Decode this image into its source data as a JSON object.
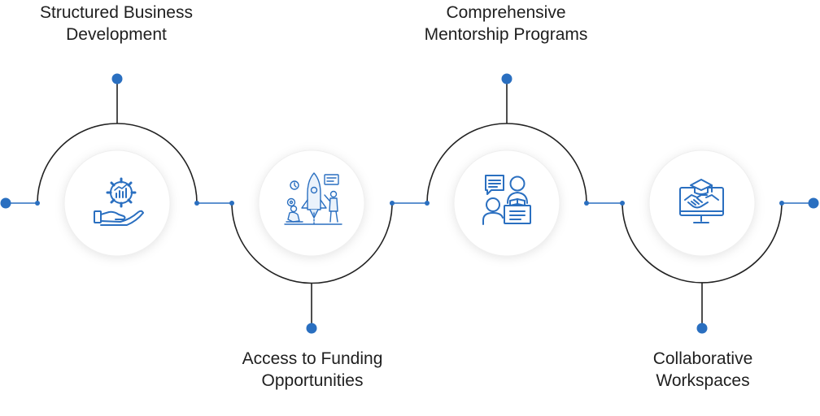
{
  "steps": [
    {
      "title_line1": "Structured Business",
      "title_line2": "Development",
      "icon": "hand-gear-growth-icon"
    },
    {
      "title_line1": "Access to Funding",
      "title_line2": "Opportunities",
      "icon": "startup-rocket-team-icon"
    },
    {
      "title_line1": "Comprehensive",
      "title_line2": "Mentorship Programs",
      "icon": "mentor-lectern-icon"
    },
    {
      "title_line1": "Collaborative",
      "title_line2": "Workspaces",
      "icon": "monitor-graduation-handshake-icon"
    }
  ],
  "colors": {
    "accent": "#2a6fc0",
    "line": "#222222",
    "disc": "#ffffff",
    "text": "#1f1f1f"
  }
}
